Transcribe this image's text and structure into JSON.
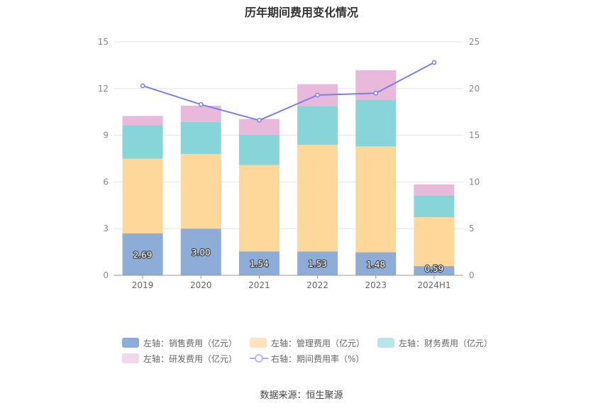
{
  "chart_data": {
    "type": "bar",
    "title": "历年期间费用变化情况",
    "categories": [
      "2019",
      "2020",
      "2021",
      "2022",
      "2023",
      "2024H1"
    ],
    "series": [
      {
        "name": "左轴：销售费用（亿元）",
        "axis": "left",
        "color": "#8eacd8",
        "values": [
          2.69,
          3.0,
          1.54,
          1.53,
          1.48,
          0.59
        ],
        "labels_shown": true
      },
      {
        "name": "左轴：管理费用（亿元）",
        "axis": "left",
        "color": "#fdd89a",
        "values": [
          4.8,
          4.8,
          5.55,
          6.85,
          6.8,
          3.15
        ]
      },
      {
        "name": "左轴：财务费用（亿元）",
        "axis": "left",
        "color": "#87d5d8",
        "values": [
          2.15,
          2.05,
          1.95,
          2.5,
          3.0,
          1.4
        ]
      },
      {
        "name": "左轴：研发费用（亿元）",
        "axis": "left",
        "color": "#e8b9da",
        "values": [
          0.6,
          1.05,
          1.0,
          1.4,
          1.9,
          0.7
        ]
      },
      {
        "name": "右轴：期间费用率（%）",
        "axis": "right",
        "type": "line",
        "color": "#7a80e8",
        "values": [
          20.3,
          18.3,
          16.6,
          19.3,
          19.5,
          22.8
        ]
      }
    ],
    "y_left": {
      "min": 0,
      "max": 15,
      "ticks": [
        "0",
        "3",
        "6",
        "9",
        "12",
        "15"
      ]
    },
    "y_right": {
      "min": 0,
      "max": 25,
      "ticks": [
        "0",
        "5",
        "10",
        "15",
        "20",
        "25"
      ]
    },
    "grid": true,
    "legend_position": "bottom"
  },
  "source": "数据来源：恒生聚源"
}
